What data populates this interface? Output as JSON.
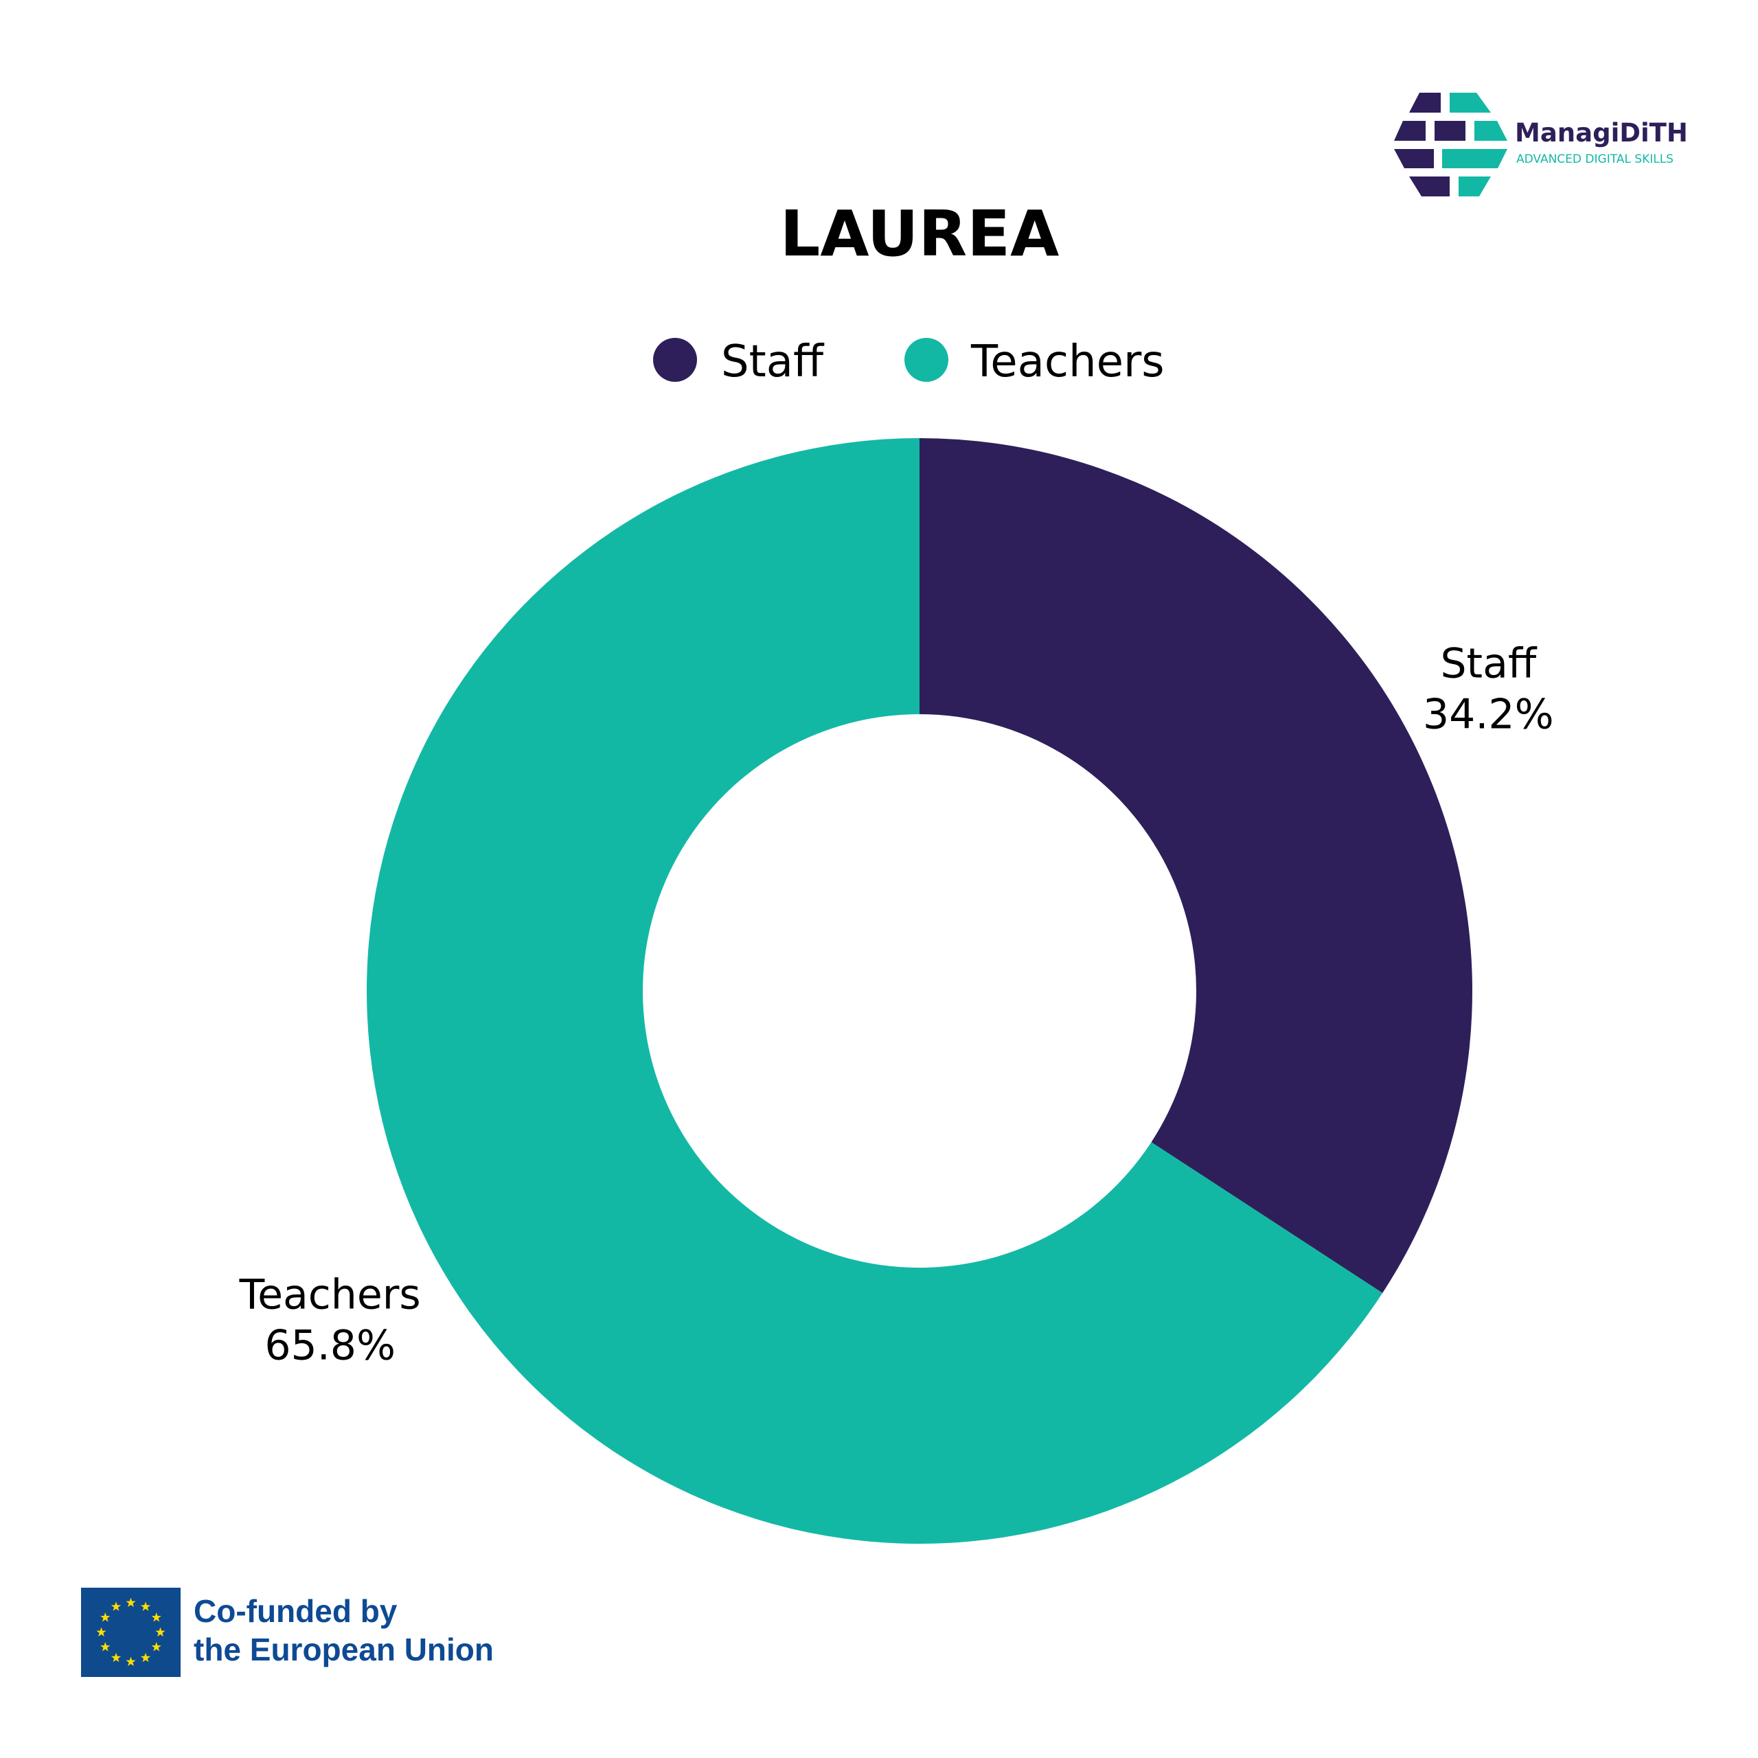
{
  "chart_data": {
    "type": "pie",
    "subtype": "donut",
    "title": "LAUREA",
    "categories": [
      "Staff",
      "Teachers"
    ],
    "values": [
      34.2,
      65.8
    ],
    "unit": "%",
    "colors": [
      "#2e1f5a",
      "#13b8a5"
    ],
    "legend_position": "top",
    "data_labels": [
      "34.2%",
      "65.8%"
    ]
  },
  "logo": {
    "name": "ManagiDiTH",
    "tagline": "ADVANCED DIGITAL SKILLS"
  },
  "footer": {
    "line1": "Co-funded by",
    "line2": "the European Union"
  }
}
